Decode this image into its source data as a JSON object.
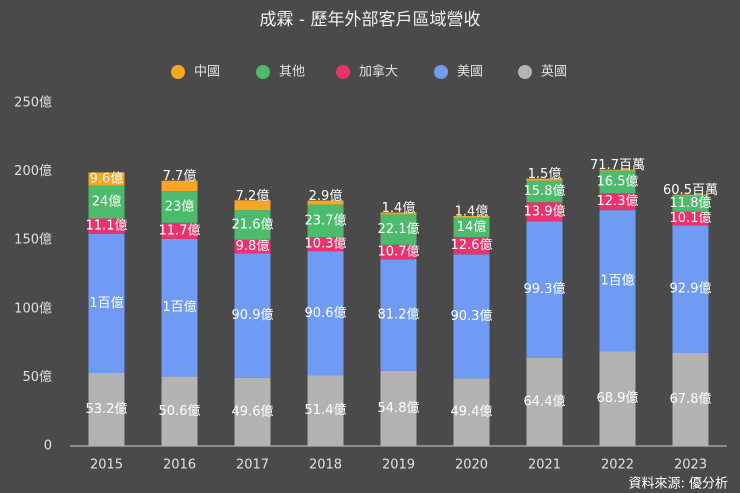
{
  "chart_data": {
    "type": "stacked_bar",
    "title": "成霖 - 歷年外部客戶區域營收",
    "source": "資料來源: 優分析",
    "categories": [
      "2015",
      "2016",
      "2017",
      "2018",
      "2019",
      "2020",
      "2021",
      "2022",
      "2023"
    ],
    "series": [
      {
        "name": "英國",
        "color": "#b3b3b3",
        "values": [
          53.2,
          50.6,
          49.6,
          51.4,
          54.8,
          49.4,
          64.4,
          68.9,
          67.8
        ],
        "value_labels": [
          "53.2億",
          "50.6億",
          "49.6億",
          "51.4億",
          "54.8億",
          "49.4億",
          "64.4億",
          "68.9億",
          "67.8億"
        ]
      },
      {
        "name": "美國",
        "color": "#6f9bf5",
        "values": [
          101.5,
          100.4,
          90.9,
          90.6,
          81.2,
          90.3,
          99.3,
          103,
          92.9
        ],
        "value_labels": [
          "1百億",
          "1百億",
          "90.9億",
          "90.6億",
          "81.2億",
          "90.3億",
          "99.3億",
          "1百億",
          "92.9億"
        ]
      },
      {
        "name": "加拿大",
        "color": "#e8336d",
        "values": [
          11.1,
          11.7,
          9.8,
          10.3,
          10.7,
          12.6,
          13.9,
          12.3,
          10.1
        ],
        "value_labels": [
          "11.1億",
          "11.7億",
          "9.8億",
          "10.3億",
          "10.7億",
          "12.6億",
          "13.9億",
          "12.3億",
          "10.1億"
        ]
      },
      {
        "name": "其他",
        "color": "#4cbb6c",
        "values": [
          24,
          23,
          21.6,
          23.7,
          22.1,
          14,
          15.8,
          16.5,
          11.8
        ],
        "value_labels": [
          "24億",
          "23億",
          "21.6億",
          "23.7億",
          "22.1億",
          "14億",
          "15.8億",
          "16.5億",
          "11.8億"
        ]
      },
      {
        "name": "中國",
        "color": "#f5a623",
        "values": [
          9.6,
          7.7,
          7.2,
          2.9,
          1.4,
          1.4,
          1.5,
          0.717,
          0.605
        ],
        "value_labels": [
          "9.6億",
          "7.7億",
          "7.2億",
          "2.9億",
          "1.4億",
          "1.4億",
          "1.5億",
          "71.7百萬",
          "60.5百萬"
        ]
      }
    ],
    "ylim": [
      0,
      250
    ],
    "yticks": [
      0,
      {
        "value": 50,
        "label": "50億"
      },
      {
        "value": 100,
        "label": "100億"
      },
      {
        "value": 150,
        "label": "150億"
      },
      {
        "value": 200,
        "label": "200億"
      },
      {
        "value": 250,
        "label": "250億"
      }
    ],
    "grid": false,
    "legend": "top"
  }
}
